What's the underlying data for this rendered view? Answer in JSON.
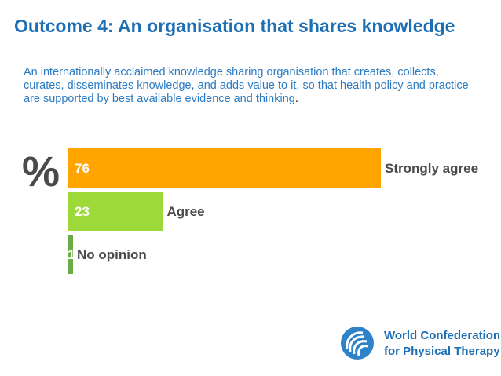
{
  "title": "Outcome 4: An organisation that shares knowledge",
  "description": {
    "text": "An internationally acclaimed knowledge sharing organisation that creates, collects, curates, disseminates knowledge, and adds value to it, so that health policy and practice are supported by best available evidence and thinking",
    "end_mark": "."
  },
  "chart_data": {
    "type": "bar",
    "orientation": "horizontal",
    "unit_label": "%",
    "categories": [
      "Strongly agree",
      "Agree",
      "No opinion"
    ],
    "values": [
      76,
      23,
      1
    ],
    "colors": [
      "#ffa400",
      "#9ed93a",
      "#6aad45"
    ],
    "xlim": [
      0,
      76
    ],
    "grid": false
  },
  "footer": {
    "org_line1": "World Confederation",
    "org_line2": "for Physical Therapy",
    "logo_icon": "globe-swirl-icon",
    "brand_color": "#1f6fb5"
  }
}
